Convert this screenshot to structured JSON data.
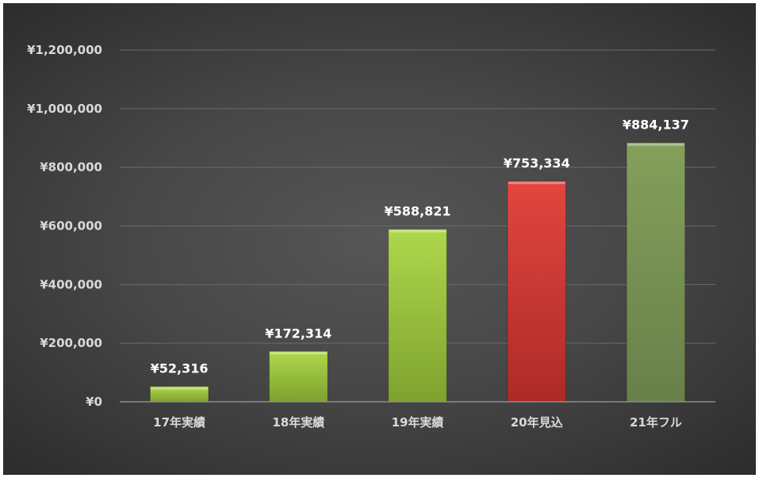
{
  "chart_data": {
    "type": "bar",
    "title": "",
    "xlabel": "",
    "ylabel": "",
    "categories": [
      "17年実績",
      "18年実績",
      "19年実績",
      "20年見込",
      "21年フル"
    ],
    "values": [
      52316,
      172314,
      588821,
      753334,
      884137
    ],
    "data_labels": [
      "¥52,316",
      "¥172,314",
      "¥588,821",
      "¥753,334",
      "¥884,137"
    ],
    "ylim": [
      0,
      1200000
    ],
    "yticks": [
      0,
      200000,
      400000,
      600000,
      800000,
      1000000,
      1200000
    ],
    "ytick_labels": [
      "¥0",
      "¥200,000",
      "¥400,000",
      "¥600,000",
      "¥800,000",
      "¥1,000,000",
      "¥1,200,000"
    ],
    "grid": true,
    "legend": "none",
    "bar_colors": [
      "green",
      "green",
      "green",
      "red",
      "olive"
    ],
    "colors": {
      "green": "#9bc63d",
      "red": "#d83a36",
      "olive": "#7b9553",
      "background": "#474747",
      "text": "#d9d9d9",
      "data_label": "#ffffff"
    }
  }
}
